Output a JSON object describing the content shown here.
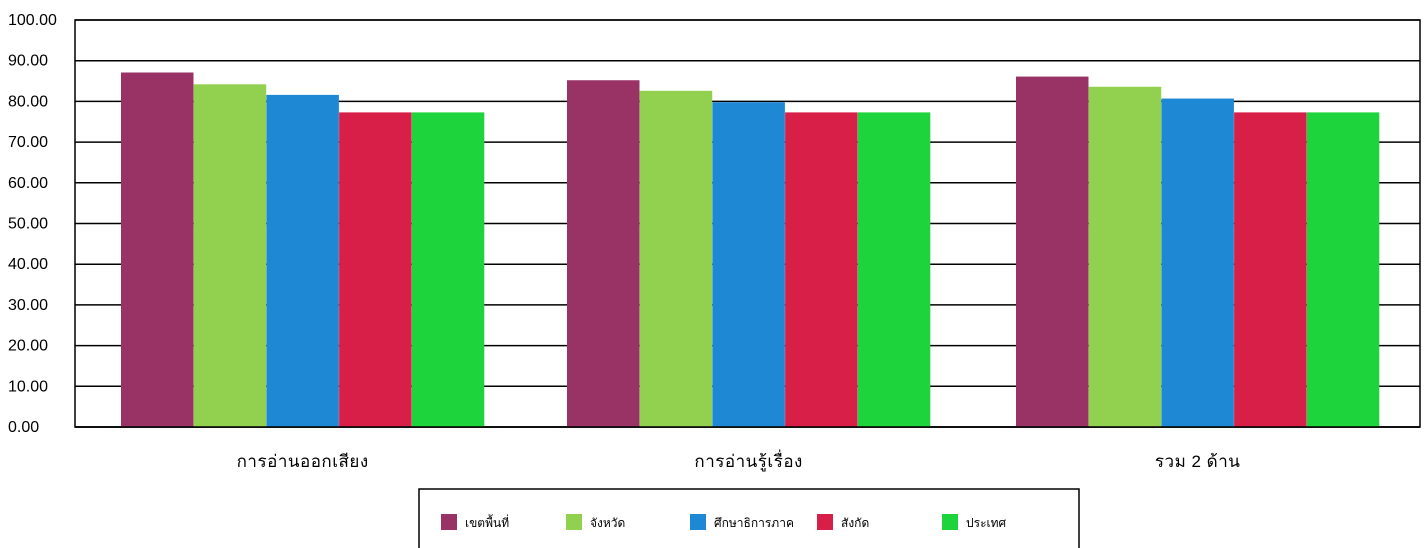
{
  "chart_data": {
    "type": "bar",
    "categories": [
      "การอ่านออกเสียง",
      "การอ่านรู้เรื่อง",
      "รวม 2 ด้าน"
    ],
    "ylim": [
      0,
      100
    ],
    "yticks": [
      "0.00",
      "10.00",
      "20.00",
      "30.00",
      "40.00",
      "50.00",
      "60.00",
      "70.00",
      "80.00",
      "90.00",
      "100.00"
    ],
    "grid": true,
    "legend_position": "bottom",
    "series": [
      {
        "name": "เขตพื้นที่",
        "color": "#993366",
        "values": [
          87.1,
          85.2,
          86.1
        ]
      },
      {
        "name": "จังหวัด",
        "color": "#92D050",
        "values": [
          84.2,
          82.6,
          83.6
        ]
      },
      {
        "name": "ศึกษาธิการภาค",
        "color": "#1F88D4",
        "values": [
          81.6,
          79.8,
          80.7
        ]
      },
      {
        "name": "สังกัด",
        "color": "#D81F48",
        "values": [
          77.3,
          77.3,
          77.3
        ]
      },
      {
        "name": "ประเทศ",
        "color": "#1ED43C",
        "values": [
          77.3,
          77.3,
          77.3
        ]
      }
    ]
  }
}
